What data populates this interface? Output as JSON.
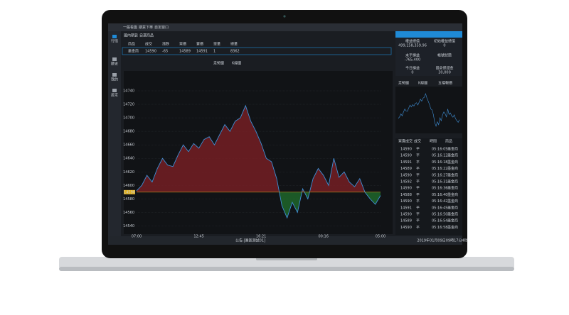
{
  "toolbar": {
    "tabs": [
      "一般看盤",
      "期貨下單",
      "自定窗口"
    ]
  },
  "sidebar": [
    "行情",
    "歷史",
    "我的",
    "設定"
  ],
  "quote": {
    "tabs": [
      "國內期貨",
      "自選商品"
    ],
    "headers": [
      "商品",
      "成交",
      "漲跌",
      "買價",
      "賣價",
      "單量",
      "總量"
    ],
    "row": [
      "墨金商",
      "14590",
      "-65",
      "14589",
      "14591",
      "1",
      "8362"
    ]
  },
  "chart_tabs": [
    "走勢圖",
    "K線圖"
  ],
  "chart_data": {
    "type": "line",
    "color": "#3f8fd6",
    "up_color": "#7a1f24",
    "down_color": "#1f6b2c",
    "reference": 14590,
    "categories": [
      "07:00",
      null,
      null,
      null,
      null,
      null,
      null,
      null,
      null,
      null,
      null,
      null,
      "12:45",
      null,
      null,
      null,
      null,
      null,
      null,
      null,
      null,
      null,
      null,
      null,
      "16:21",
      null,
      null,
      null,
      null,
      null,
      null,
      null,
      null,
      null,
      null,
      null,
      "00:16",
      null,
      null,
      null,
      null,
      null,
      null,
      null,
      null,
      null,
      null,
      "05:00"
    ],
    "values": [
      14592,
      14600,
      14615,
      14605,
      14625,
      14640,
      14630,
      14628,
      14645,
      14660,
      14650,
      14662,
      14655,
      14668,
      14672,
      14660,
      14675,
      14690,
      14680,
      14695,
      14700,
      14718,
      14695,
      14680,
      14662,
      14640,
      14635,
      14610,
      14570,
      14552,
      14575,
      14560,
      14595,
      14580,
      14610,
      14625,
      14615,
      14600,
      14640,
      14612,
      14620,
      14605,
      14598,
      14610,
      14590,
      14580,
      14572,
      14585
    ],
    "ylim": [
      14530,
      14740
    ],
    "yticks": [
      14540,
      14560,
      14580,
      14600,
      14620,
      14640,
      14660,
      14680,
      14700,
      14720,
      14740
    ]
  },
  "account": {
    "items": [
      {
        "label": "權益總值",
        "value": "499,158,359.96"
      },
      {
        "label": "初始權益總值",
        "value": "0"
      },
      {
        "label": "未平損益",
        "value": "-765,400"
      },
      {
        "label": "今日損益",
        "value": "0"
      },
      {
        "label": "留倉保證金",
        "value": "30,000"
      }
    ],
    "status_label": "帳號狀態"
  },
  "right_tabs": [
    "走勢圖",
    "K線圖",
    "五檔報價"
  ],
  "trades": {
    "headers": [
      "買賣成交",
      "成交",
      "時間",
      "商品"
    ],
    "rows": [
      [
        "14590",
        "平",
        "05:16:05",
        "墨金商"
      ],
      [
        "14590",
        "平",
        "05:16:12",
        "墨金商"
      ],
      [
        "14591",
        "平",
        "05:16:18",
        "墨金商"
      ],
      [
        "14589",
        "平",
        "05:16:22",
        "墨金商"
      ],
      [
        "14590",
        "平",
        "05:16:27",
        "墨金商"
      ],
      [
        "14592",
        "平",
        "05:16:31",
        "墨金商"
      ],
      [
        "14590",
        "平",
        "05:16:36",
        "墨金商"
      ],
      [
        "14588",
        "平",
        "05:16:40",
        "墨金商"
      ],
      [
        "14590",
        "平",
        "05:16:42",
        "墨金商"
      ],
      [
        "14591",
        "平",
        "05:16:45",
        "墨金商"
      ],
      [
        "14590",
        "平",
        "05:16:50",
        "墨金商"
      ],
      [
        "14589",
        "平",
        "05:16:54",
        "墨金商"
      ],
      [
        "14590",
        "平",
        "05:16:58",
        "墨金商"
      ]
    ]
  },
  "status": {
    "notice": "公告:[業區測試01]",
    "time": "2019年01月09日09時17分4秒"
  }
}
